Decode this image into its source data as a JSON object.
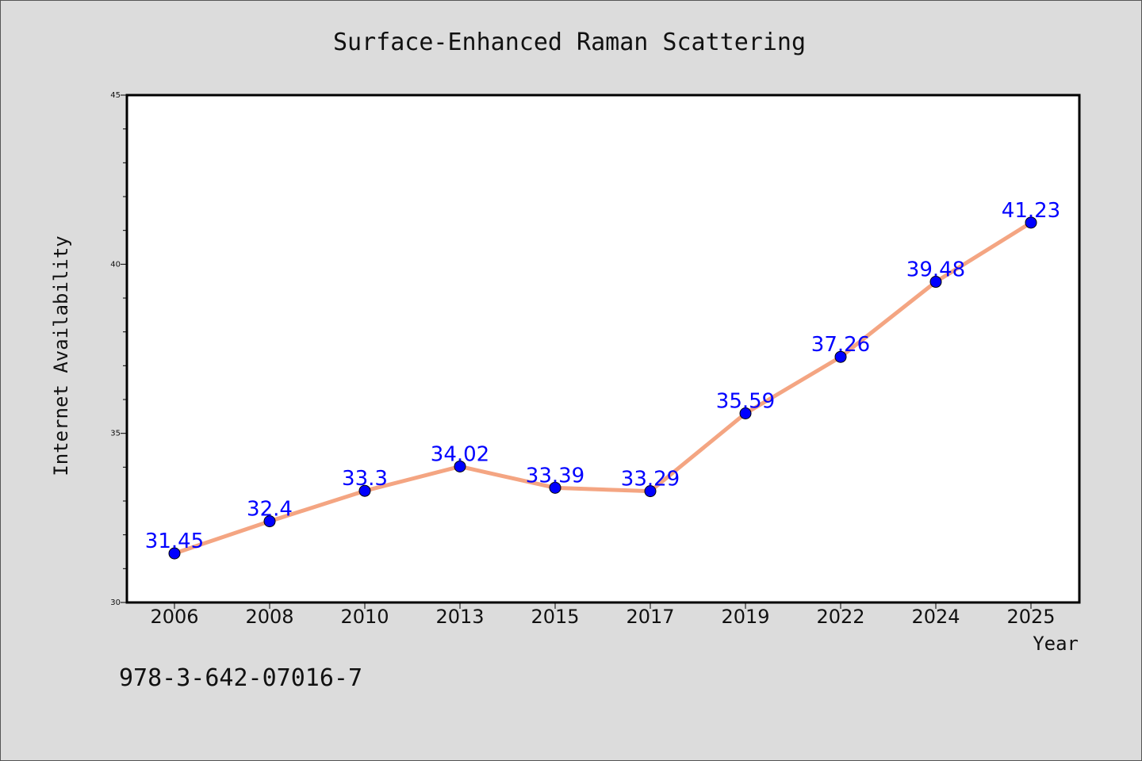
{
  "chart_data": {
    "type": "line",
    "title": "Surface-Enhanced Raman Scattering",
    "xlabel": "Year",
    "ylabel": "Internet Availability",
    "categories": [
      "2006",
      "2008",
      "2010",
      "2013",
      "2015",
      "2017",
      "2019",
      "2022",
      "2024",
      "2025"
    ],
    "series": [
      {
        "values": [
          31.45,
          32.4,
          33.3,
          34.02,
          33.39,
          33.29,
          35.59,
          37.26,
          39.48,
          41.23
        ],
        "labels": [
          "31.45",
          "32.4",
          "33.3",
          "34.02",
          "33.39",
          "33.29",
          "35.59",
          "37.26",
          "39.48",
          "41.23"
        ],
        "line_color": "#f4a582",
        "marker_color": "#0000ff",
        "label_color": "#0000ff"
      }
    ],
    "ylim": [
      30,
      45
    ],
    "yticks": [
      "30",
      "35",
      "40",
      "45"
    ],
    "grid": false,
    "legend": "none"
  },
  "footer": {
    "isbn": "978-3-642-07016-7"
  }
}
